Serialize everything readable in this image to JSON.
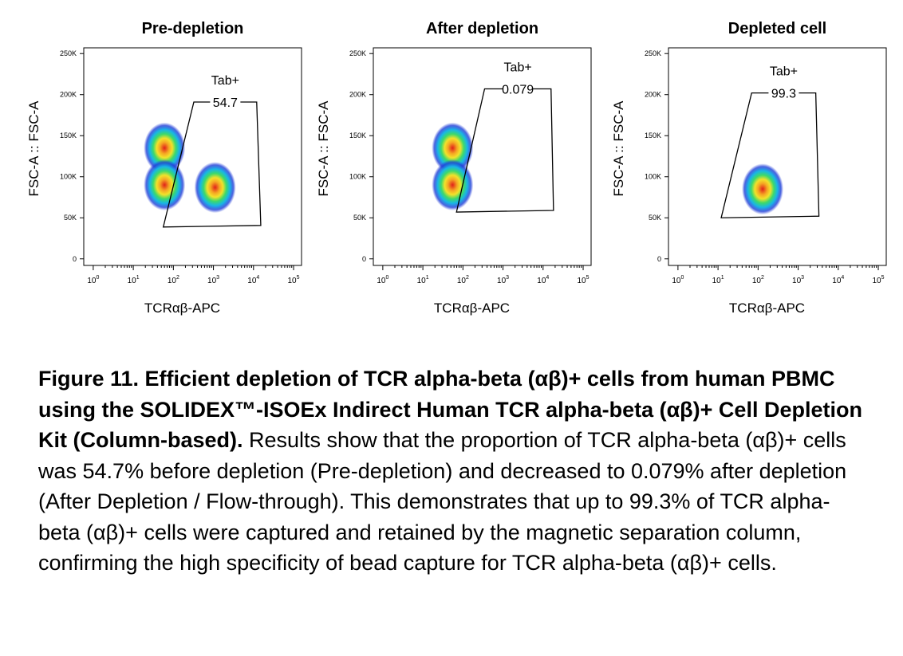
{
  "chart_data": [
    {
      "type": "scatter",
      "title": "Pre-depletion",
      "xlabel": "TCRαβ-APC",
      "ylabel": "FSC-A :: FSC-A",
      "xscale": "log",
      "xlim": [
        0.58,
        158000
      ],
      "ylim": [
        -8000,
        257000
      ],
      "xticks": [
        {
          "value": 1,
          "label": "10",
          "exponent": "0"
        },
        {
          "value": 10,
          "label": "10",
          "exponent": "1"
        },
        {
          "value": 100,
          "label": "10",
          "exponent": "2"
        },
        {
          "value": 1000,
          "label": "10",
          "exponent": "3"
        },
        {
          "value": 10000,
          "label": "10",
          "exponent": "4"
        },
        {
          "value": 100000,
          "label": "10",
          "exponent": "5"
        }
      ],
      "yticks": [
        0,
        {
          "value": 50000,
          "label": "50K"
        },
        {
          "value": 100000,
          "label": "100K"
        },
        {
          "value": 150000,
          "label": "150K"
        },
        {
          "value": 200000,
          "label": "200K"
        },
        {
          "value": 250000,
          "label": "250K"
        }
      ],
      "gate": {
        "name": "Tab+",
        "value": 54.7,
        "x": [
          324,
          12000,
          15200,
          56
        ],
        "y": [
          191000,
          191000,
          40700,
          38800
        ]
      },
      "clusters": [
        {
          "x": 60,
          "y": 135000
        },
        {
          "x": 60,
          "y": 90000
        },
        {
          "x": 1100,
          "y": 87000
        }
      ]
    },
    {
      "type": "scatter",
      "title": "After depletion",
      "xlabel": "TCRαβ-APC",
      "ylabel": "FSC-A :: FSC-A",
      "xscale": "log",
      "xlim": [
        0.58,
        158000
      ],
      "ylim": [
        -8000,
        257000
      ],
      "xticks": [
        {
          "value": 1,
          "label": "10",
          "exponent": "0"
        },
        {
          "value": 10,
          "label": "10",
          "exponent": "1"
        },
        {
          "value": 100,
          "label": "10",
          "exponent": "2"
        },
        {
          "value": 1000,
          "label": "10",
          "exponent": "3"
        },
        {
          "value": 10000,
          "label": "10",
          "exponent": "4"
        },
        {
          "value": 100000,
          "label": "10",
          "exponent": "5"
        }
      ],
      "yticks": [
        0,
        {
          "value": 50000,
          "label": "50K"
        },
        {
          "value": 100000,
          "label": "100K"
        },
        {
          "value": 150000,
          "label": "150K"
        },
        {
          "value": 200000,
          "label": "200K"
        },
        {
          "value": 250000,
          "label": "250K"
        }
      ],
      "gate": {
        "name": "Tab+",
        "value": 0.079,
        "x": [
          347,
          15800,
          18200,
          69
        ],
        "y": [
          207000,
          207000,
          59000,
          57000
        ]
      },
      "clusters": [
        {
          "x": 55,
          "y": 135000
        },
        {
          "x": 55,
          "y": 90000
        }
      ]
    },
    {
      "type": "scatter",
      "title": "Depleted cell",
      "xlabel": "TCRαβ-APC",
      "ylabel": "FSC-A :: FSC-A",
      "xscale": "log",
      "xlim": [
        0.58,
        158000
      ],
      "ylim": [
        -8000,
        257000
      ],
      "xticks": [
        {
          "value": 1,
          "label": "10",
          "exponent": "0"
        },
        {
          "value": 10,
          "label": "10",
          "exponent": "1"
        },
        {
          "value": 100,
          "label": "10",
          "exponent": "2"
        },
        {
          "value": 1000,
          "label": "10",
          "exponent": "3"
        },
        {
          "value": 10000,
          "label": "10",
          "exponent": "4"
        },
        {
          "value": 100000,
          "label": "10",
          "exponent": "5"
        }
      ],
      "yticks": [
        0,
        {
          "value": 50000,
          "label": "50K"
        },
        {
          "value": 100000,
          "label": "100K"
        },
        {
          "value": 150000,
          "label": "150K"
        },
        {
          "value": 200000,
          "label": "200K"
        },
        {
          "value": 250000,
          "label": "250K"
        }
      ],
      "gate": {
        "name": "Tab+",
        "value": 99.3,
        "x": [
          69,
          2750,
          3300,
          12
        ],
        "y": [
          202000,
          202000,
          52000,
          50000
        ]
      },
      "clusters": [
        {
          "x": 130,
          "y": 85000
        }
      ]
    }
  ],
  "caption": {
    "label": "Figure 11. Efficient depletion of TCR alpha-beta (αβ)+ cells from human PBMC using the SOLIDEX™-ISOEx Indirect Human TCR alpha-beta (αβ)+ Cell Depletion Kit (Column-based).",
    "text": "Results show that the proportion of TCR alpha-beta (αβ)+ cells was 54.7% before depletion (Pre-depletion) and decreased to 0.079% after depletion (After Depletion / Flow-through). This demonstrates that up to 99.3% of TCR alpha-beta (αβ)+ cells were captured and retained by the magnetic separation column, confirming the high specificity of bead capture for TCR alpha-beta (αβ)+ cells."
  }
}
